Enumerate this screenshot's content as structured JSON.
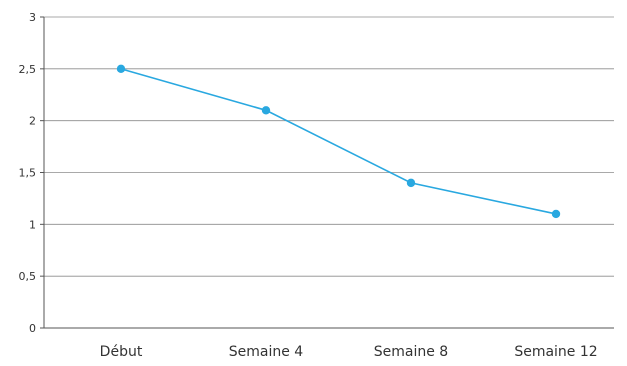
{
  "chart_data": {
    "type": "line",
    "title": "",
    "xlabel": "",
    "ylabel": "",
    "categories": [
      "Début",
      "Semaine 4",
      "Semaine 8",
      "Semaine 12"
    ],
    "series": [
      {
        "values": [
          2.5,
          2.1,
          1.4,
          1.1
        ],
        "color": "#29a8e0"
      }
    ],
    "ylim": [
      0,
      3
    ],
    "yticks": [
      0,
      0.5,
      1,
      1.5,
      2,
      2.5,
      3
    ],
    "ytick_labels": [
      "0",
      "0,5",
      "1",
      "1,5",
      "2",
      "2,5",
      "3"
    ],
    "grid": true,
    "legend": "none"
  }
}
